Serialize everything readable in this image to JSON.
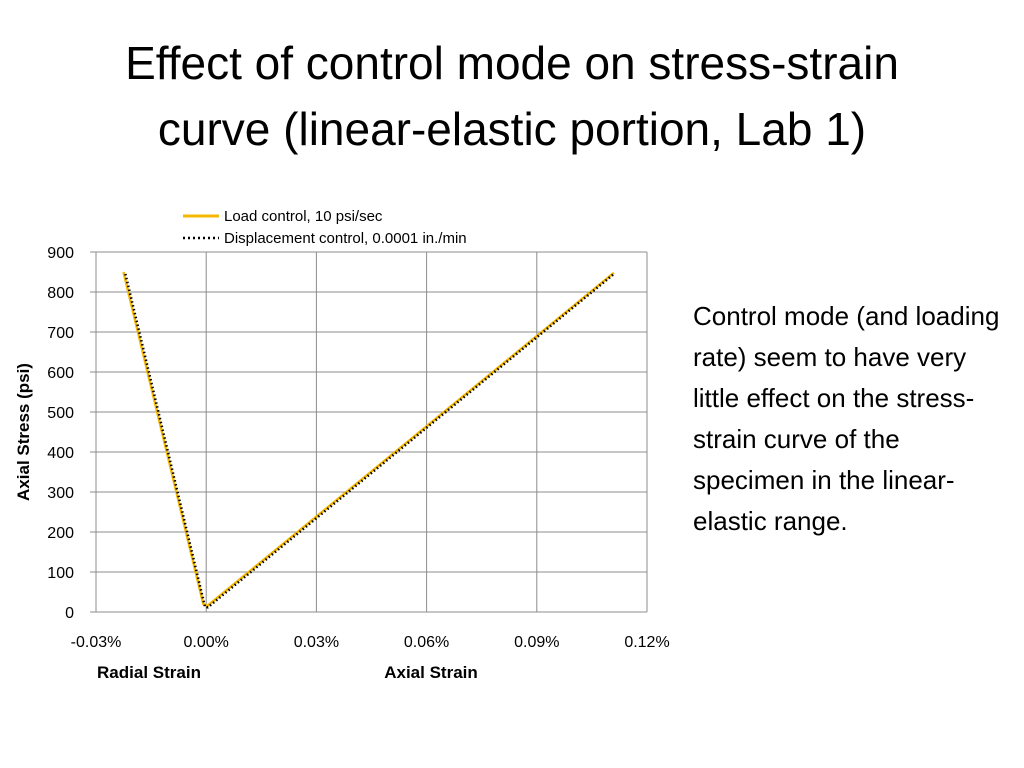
{
  "slide": {
    "title_line1": "Effect of control mode on stress-strain",
    "title_line2": "curve (linear-elastic portion, Lab 1)",
    "body_text": "Control mode (and loading rate) seem to have very little effect on the stress-strain curve of the specimen in the linear-elastic range."
  },
  "chart_data": {
    "type": "line",
    "title": "",
    "xlabel": "",
    "ylabel": "Axial Stress (psi)",
    "x_group_labels": [
      "Radial Strain",
      "Axial Strain"
    ],
    "x_unit": "percent",
    "xlim": [
      -0.03,
      0.12
    ],
    "ylim": [
      0,
      900
    ],
    "x_ticks": [
      -0.03,
      0.0,
      0.03,
      0.06,
      0.09,
      0.12
    ],
    "x_tick_labels": [
      "-0.03%",
      "0.00%",
      "0.03%",
      "0.06%",
      "0.09%",
      "0.12%"
    ],
    "y_ticks": [
      0,
      100,
      200,
      300,
      400,
      500,
      600,
      700,
      800,
      900
    ],
    "y_tick_labels": [
      "0",
      "100",
      "200",
      "300",
      "400",
      "500",
      "600",
      "700",
      "800",
      "900"
    ],
    "grid": true,
    "legend_position": "top",
    "series": [
      {
        "name": "Load control, 10 psi/sec",
        "color": "#f5b800",
        "style": "solid",
        "points": [
          [
            -0.0225,
            850
          ],
          [
            -0.0008,
            20
          ],
          [
            0.0003,
            15
          ],
          [
            0.111,
            848
          ]
        ]
      },
      {
        "name": "Displacement control, 0.0001 in./min",
        "color": "#000000",
        "style": "dotted",
        "points": [
          [
            -0.022,
            845
          ],
          [
            -0.0003,
            12
          ],
          [
            0.0005,
            12
          ],
          [
            0.111,
            845
          ]
        ]
      }
    ]
  }
}
